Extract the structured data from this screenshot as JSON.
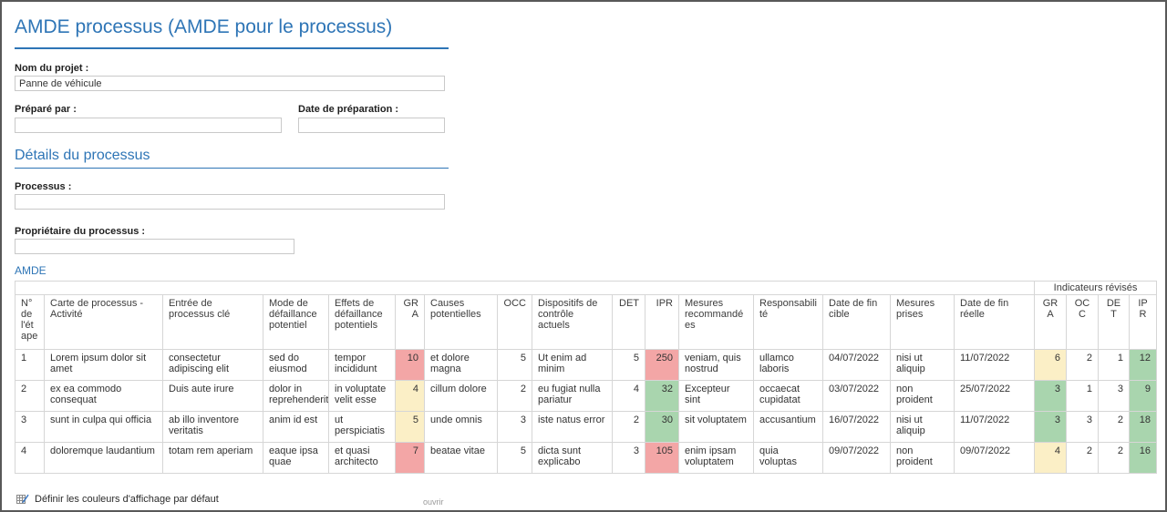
{
  "title": "AMDE processus (AMDE pour le processus)",
  "form": {
    "project_name_label": "Nom du projet :",
    "project_name_value": "Panne de véhicule",
    "prepared_by_label": "Préparé par :",
    "prepared_by_value": "",
    "prep_date_label": "Date de préparation :",
    "prep_date_value": "",
    "details_heading": "Détails du processus",
    "process_label": "Processus :",
    "process_value": "",
    "owner_label": "Propriétaire du processus :",
    "owner_value": ""
  },
  "table": {
    "section_heading": "AMDE",
    "band": {
      "left_colspan": 16,
      "label": "Indicateurs révisés",
      "span": 4
    },
    "columns": [
      {
        "label": "N° de l'étape",
        "width": 32,
        "halign": "left"
      },
      {
        "label": "Carte de processus - Activité",
        "width": 130,
        "halign": "left"
      },
      {
        "label": "Entrée de processus clé",
        "width": 110,
        "halign": "left"
      },
      {
        "label": "Mode de défaillance potentiel",
        "width": 72,
        "halign": "left"
      },
      {
        "label": "Effets de défaillance potentiels",
        "width": 73,
        "halign": "left"
      },
      {
        "label": "GRA",
        "width": 32,
        "halign": "right"
      },
      {
        "label": "Causes potentielles",
        "width": 80,
        "halign": "left"
      },
      {
        "label": "OCC",
        "width": 38,
        "halign": "right"
      },
      {
        "label": "Dispositifs de contrôle actuels",
        "width": 88,
        "halign": "left"
      },
      {
        "label": "DET",
        "width": 36,
        "halign": "right"
      },
      {
        "label": "IPR",
        "width": 37,
        "halign": "right"
      },
      {
        "label": "Mesures recommandées",
        "width": 82,
        "halign": "left"
      },
      {
        "label": "Responsabilité",
        "width": 76,
        "halign": "left"
      },
      {
        "label": "Date de fin cible",
        "width": 74,
        "halign": "left"
      },
      {
        "label": "Mesures prises",
        "width": 70,
        "halign": "left"
      },
      {
        "label": "Date de fin réelle",
        "width": 88,
        "halign": "left"
      },
      {
        "label": "GRA",
        "width": 35,
        "halign": "center"
      },
      {
        "label": "OCC",
        "width": 35,
        "halign": "center"
      },
      {
        "label": "DET",
        "width": 34,
        "halign": "center"
      },
      {
        "label": "IPR",
        "width": 30,
        "halign": "center"
      }
    ],
    "numeric_cols": [
      5,
      7,
      9,
      10,
      16,
      17,
      18,
      19
    ],
    "rows": [
      {
        "cells": [
          "1",
          "Lorem ipsum dolor sit amet",
          "consectetur adipiscing elit",
          "sed do eiusmod",
          "tempor incididunt",
          "10",
          "et dolore magna",
          "5",
          "Ut enim ad minim",
          "5",
          "250",
          "veniam, quis nostrud",
          "ullamco laboris",
          "04/07/2022",
          "nisi ut aliquip",
          "11/07/2022",
          "6",
          "2",
          "1",
          "12"
        ],
        "bg": {
          "5": "red",
          "10": "red",
          "16": "yellow",
          "19": "green"
        }
      },
      {
        "cells": [
          "2",
          "ex ea commodo consequat",
          "Duis aute irure",
          "dolor in reprehenderit",
          "in voluptate velit esse",
          "4",
          "cillum dolore",
          "2",
          "eu fugiat nulla pariatur",
          "4",
          "32",
          "Excepteur sint",
          "occaecat cupidatat",
          "03/07/2022",
          "non proident",
          "25/07/2022",
          "3",
          "1",
          "3",
          "9"
        ],
        "bg": {
          "5": "yellow",
          "10": "green",
          "16": "green",
          "19": "green"
        }
      },
      {
        "cells": [
          "3",
          "sunt in culpa qui officia",
          "ab illo inventore veritatis",
          "anim id est",
          "ut perspiciatis",
          "5",
          "unde omnis",
          "3",
          "iste natus error",
          "2",
          "30",
          "sit voluptatem",
          "accusantium",
          "16/07/2022",
          "nisi ut aliquip",
          "11/07/2022",
          "3",
          "3",
          "2",
          "18"
        ],
        "bg": {
          "5": "yellow",
          "10": "green",
          "16": "green",
          "19": "green"
        }
      },
      {
        "cells": [
          "4",
          "doloremque laudantium",
          "totam rem aperiam",
          "eaque ipsa quae",
          "et quasi architecto",
          "7",
          "beatae vitae",
          "5",
          "dicta sunt explicabo",
          "3",
          "105",
          "enim ipsam voluptatem",
          "quia voluptas",
          "09/07/2022",
          "non proident",
          "09/07/2022",
          "4",
          "2",
          "2",
          "16"
        ],
        "bg": {
          "5": "red",
          "10": "red",
          "16": "yellow",
          "19": "green"
        }
      }
    ]
  },
  "footer": {
    "define_colors_label": "Définir les couleurs d'affichage par défaut",
    "open_label": "ouvrir"
  },
  "colors": {
    "accent": "#2E75B6",
    "cell_red": "#F3A6A6",
    "cell_yellow": "#FBEFC6",
    "cell_green": "#A9D5AE",
    "table_border": "#d6d6d6"
  }
}
